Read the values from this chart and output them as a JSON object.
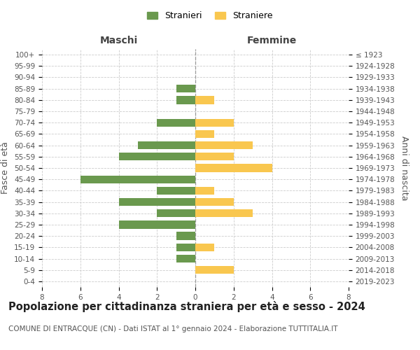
{
  "age_groups": [
    "0-4",
    "5-9",
    "10-14",
    "15-19",
    "20-24",
    "25-29",
    "30-34",
    "35-39",
    "40-44",
    "45-49",
    "50-54",
    "55-59",
    "60-64",
    "65-69",
    "70-74",
    "75-79",
    "80-84",
    "85-89",
    "90-94",
    "95-99",
    "100+"
  ],
  "birth_years": [
    "2019-2023",
    "2014-2018",
    "2009-2013",
    "2004-2008",
    "1999-2003",
    "1994-1998",
    "1989-1993",
    "1984-1988",
    "1979-1983",
    "1974-1978",
    "1969-1973",
    "1964-1968",
    "1959-1963",
    "1954-1958",
    "1949-1953",
    "1944-1948",
    "1939-1943",
    "1934-1938",
    "1929-1933",
    "1924-1928",
    "≤ 1923"
  ],
  "maschi": [
    0,
    0,
    1,
    1,
    1,
    4,
    2,
    4,
    2,
    6,
    0,
    4,
    3,
    0,
    2,
    0,
    1,
    1,
    0,
    0,
    0
  ],
  "femmine": [
    0,
    2,
    0,
    1,
    0,
    0,
    3,
    2,
    1,
    0,
    4,
    2,
    3,
    1,
    2,
    0,
    1,
    0,
    0,
    0,
    0
  ],
  "maschi_color": "#6a994e",
  "femmine_color": "#f9c74f",
  "background_color": "#ffffff",
  "grid_color": "#cccccc",
  "title": "Popolazione per cittadinanza straniera per età e sesso - 2024",
  "subtitle": "COMUNE DI ENTRACQUE (CN) - Dati ISTAT al 1° gennaio 2024 - Elaborazione TUTTITALIA.IT",
  "ylabel_left": "Fasce di età",
  "ylabel_right": "Anni di nascita",
  "xlabel_maschi": "Maschi",
  "xlabel_femmine": "Femmine",
  "legend_maschi": "Stranieri",
  "legend_femmine": "Straniere",
  "xlim": [
    -8,
    8
  ],
  "xticks": [
    -8,
    -6,
    -4,
    -2,
    0,
    2,
    4,
    6,
    8
  ],
  "xticklabels": [
    "8",
    "6",
    "4",
    "2",
    "0",
    "2",
    "4",
    "6",
    "8"
  ],
  "bar_height": 0.7,
  "title_fontsize": 10.5,
  "subtitle_fontsize": 7.5,
  "axis_label_fontsize": 9,
  "tick_fontsize": 7.5,
  "legend_fontsize": 9
}
